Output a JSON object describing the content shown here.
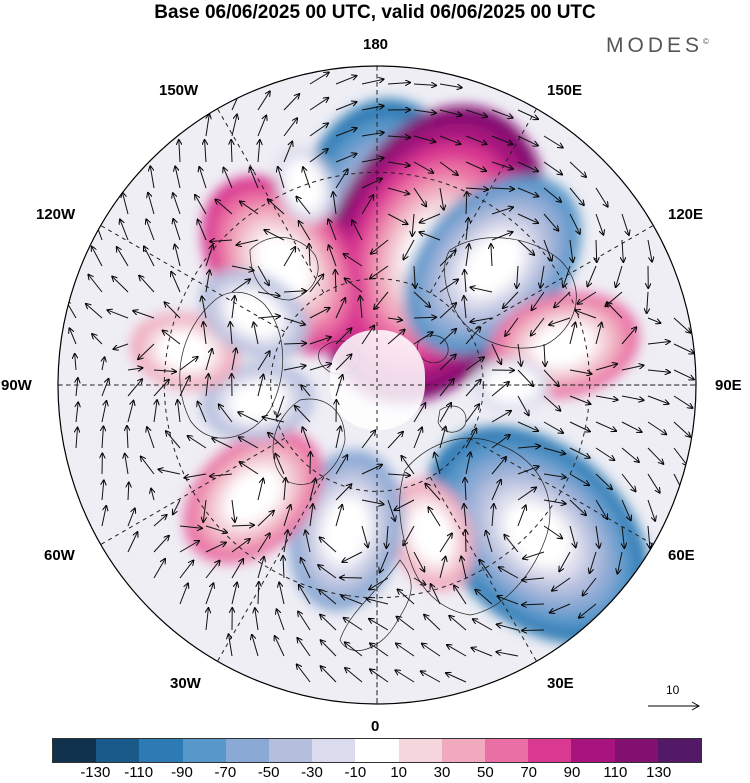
{
  "title": "Base 06/06/2025 00 UTC, valid 06/06/2025 00 UTC",
  "brand": "MODES",
  "brand_mark": "©",
  "longitude_labels": {
    "lon_180": "180",
    "lon_150e": "150E",
    "lon_120e": "120E",
    "lon_90e": "90E",
    "lon_60e": "60E",
    "lon_30e": "30E",
    "lon_0": "0",
    "lon_30w": "30W",
    "lon_60w": "60W",
    "lon_90w": "90W",
    "lon_120w": "120W",
    "lon_150w": "150W"
  },
  "reference_vector": {
    "label": "10"
  },
  "colorbar": {
    "colors": [
      "#10324f",
      "#1a5a8a",
      "#2d7bb5",
      "#5897c9",
      "#8aa9d4",
      "#b4bedd",
      "#dadbec",
      "#ffffff",
      "#f4d6dc",
      "#f0a9bd",
      "#ea6fa4",
      "#d93991",
      "#a8137e",
      "#82106f",
      "#531968"
    ],
    "ticks": [
      "-130",
      "-110",
      "-90",
      "-70",
      "-50",
      "-30",
      "-10",
      "10",
      "30",
      "50",
      "70",
      "90",
      "110",
      "130"
    ]
  },
  "anomaly_centers": [
    {
      "lon": 177,
      "lat": 47,
      "value": -110
    },
    {
      "lon": 157,
      "lat": 50,
      "value": 115
    },
    {
      "lon": 136,
      "lat": 43,
      "value": -85
    },
    {
      "lon": 102,
      "lat": 36,
      "value": 55
    },
    {
      "lon": 47,
      "lat": 28,
      "value": -100
    },
    {
      "lon": 20,
      "lat": 45,
      "value": 45
    },
    {
      "lon": -12,
      "lat": 48,
      "value": -70
    },
    {
      "lon": -48,
      "lat": 43,
      "value": 65
    },
    {
      "lon": -82,
      "lat": 56,
      "value": -40
    },
    {
      "lon": -100,
      "lat": 35,
      "value": 35
    },
    {
      "lon": -142,
      "lat": 47,
      "value": 75
    },
    {
      "lon": -120,
      "lat": 50,
      "value": -45
    },
    {
      "lon": 90,
      "lat": 52,
      "value": -20
    },
    {
      "lon": -160,
      "lat": 30,
      "value": -25
    }
  ]
}
